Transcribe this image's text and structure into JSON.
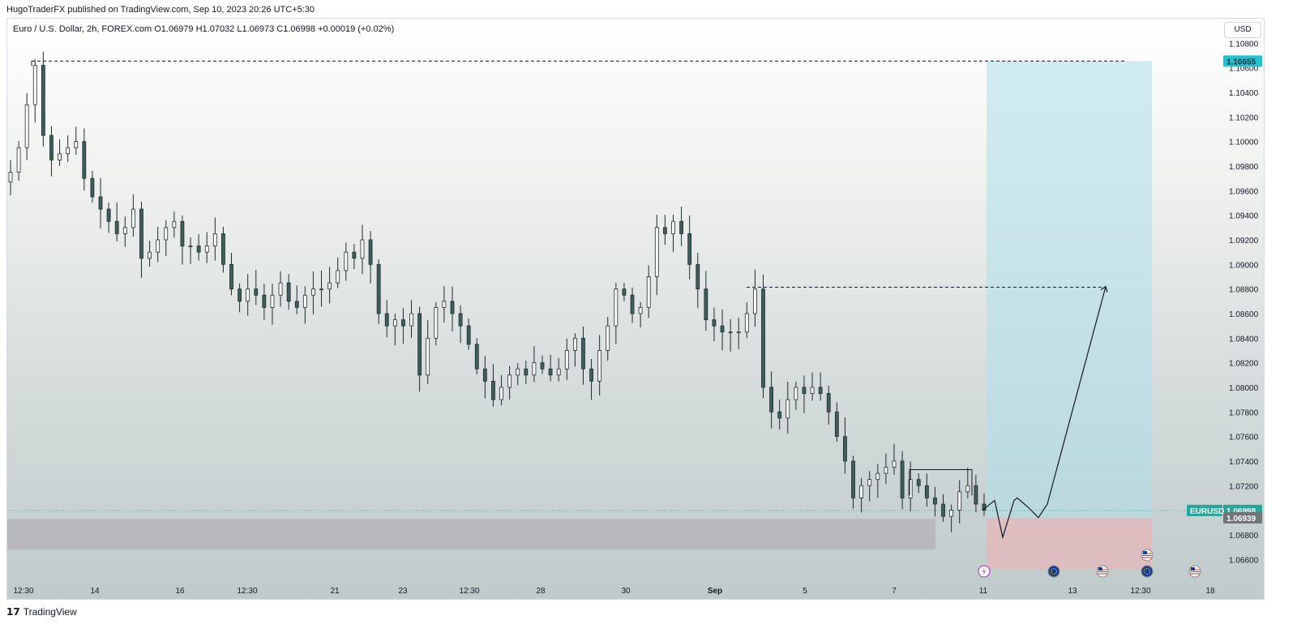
{
  "header": {
    "publish_line": "HugoTraderFX published on TradingView.com, Sep 10, 2023 20:26 UTC+5:30"
  },
  "legend": {
    "text": "Euro / U.S. Dollar, 2h, FOREX.com  O1.06979  H1.07032  L1.06973  C1.06998  +0.00019 (+0.02%)"
  },
  "currency_button": {
    "label": "USD"
  },
  "footer": {
    "logo_text": "TradingView",
    "logo_icon": "tradingview-logo-icon"
  },
  "colors": {
    "candle_body": "#3f5f5b",
    "candle_outline": "#1e2a2a",
    "profit_zone": "#aee0ea",
    "loss_zone": "#e6b7b9",
    "demand_zone": "#b3b2b5",
    "last_price_tag": "#26a69a",
    "stop_tag": "#6f7476",
    "target_tag": "#22c3d1"
  },
  "chart_data": {
    "type": "candlestick",
    "symbol": "EURUSD",
    "timeframe": "2h",
    "y_axis": {
      "ylim": [
        1.0645,
        1.11
      ],
      "tick_labels": [
        "1.10800",
        "1.10600",
        "1.10400",
        "1.10200",
        "1.10000",
        "1.09800",
        "1.09600",
        "1.09400",
        "1.09200",
        "1.09000",
        "1.08800",
        "1.08600",
        "1.08400",
        "1.08200",
        "1.08000",
        "1.07800",
        "1.07600",
        "1.07400",
        "1.07200",
        "1.07000",
        "1.06800",
        "1.06600"
      ]
    },
    "x_axis": {
      "tick_labels": [
        "12:30",
        "14",
        "16",
        "12:30",
        "21",
        "23",
        "12:30",
        "28",
        "30",
        "Sep",
        "5",
        "7",
        "11",
        "13",
        "12:30",
        "18"
      ]
    },
    "close_path": [
      1.0975,
      1.0995,
      1.103,
      1.1062,
      1.1005,
      1.0985,
      1.099,
      1.0995,
      1.1,
      1.097,
      1.0955,
      1.0945,
      1.0935,
      1.0925,
      1.093,
      1.0945,
      1.0905,
      1.091,
      1.092,
      1.093,
      1.0935,
      1.0915,
      1.0915,
      1.091,
      1.0915,
      1.0925,
      1.09,
      1.088,
      1.087,
      1.088,
      1.0875,
      1.0865,
      1.0875,
      1.0885,
      1.087,
      1.0865,
      1.0875,
      1.088,
      1.088,
      1.0885,
      1.0895,
      1.091,
      1.0905,
      1.092,
      1.09,
      1.086,
      1.085,
      1.0855,
      1.085,
      1.086,
      1.081,
      1.084,
      1.0865,
      1.087,
      1.086,
      1.085,
      1.0835,
      1.0815,
      1.0805,
      1.079,
      1.08,
      1.081,
      1.0815,
      1.081,
      1.082,
      1.0815,
      1.081,
      1.0815,
      1.083,
      1.084,
      1.0815,
      1.0805,
      1.083,
      1.085,
      1.088,
      1.0875,
      1.086,
      1.0865,
      1.089,
      1.093,
      1.0925,
      1.0935,
      1.0925,
      1.09,
      1.088,
      1.0855,
      1.085,
      1.0845,
      1.0845,
      1.0845,
      1.086,
      1.088,
      1.08,
      1.078,
      1.0775,
      1.079,
      1.08,
      1.0795,
      1.08,
      1.0795,
      1.078,
      1.076,
      1.074,
      1.071,
      1.072,
      1.0725,
      1.073,
      1.0735,
      1.074,
      1.071,
      1.0725,
      1.072,
      1.071,
      1.0705,
      1.0695,
      1.07,
      1.0715,
      1.072,
      1.0705,
      1.07
    ],
    "horizontal_levels": [
      {
        "price": 1.10655,
        "style": "dashed",
        "label": "1.10655"
      },
      {
        "price": 1.08815,
        "style": "dashed"
      }
    ],
    "current_price": {
      "symbol_label": "EURUSD",
      "price": "1.06998"
    },
    "stop_price": "1.06939",
    "long_position": {
      "entry": 1.06939,
      "target": 1.10655,
      "stop": 1.0652
    },
    "demand_zone": {
      "top": 1.0693,
      "bottom": 1.0668
    },
    "projection_path": [
      1.07,
      1.0708,
      1.0678,
      1.0708,
      1.071,
      1.0702,
      1.0694,
      1.0705,
      1.0882
    ],
    "event_icons": [
      "lightning-event-icon",
      "eu-flag-icon",
      "us-flag-icon",
      "us-flag-icon",
      "eu-flag-icon",
      "us-flag-icon"
    ]
  }
}
